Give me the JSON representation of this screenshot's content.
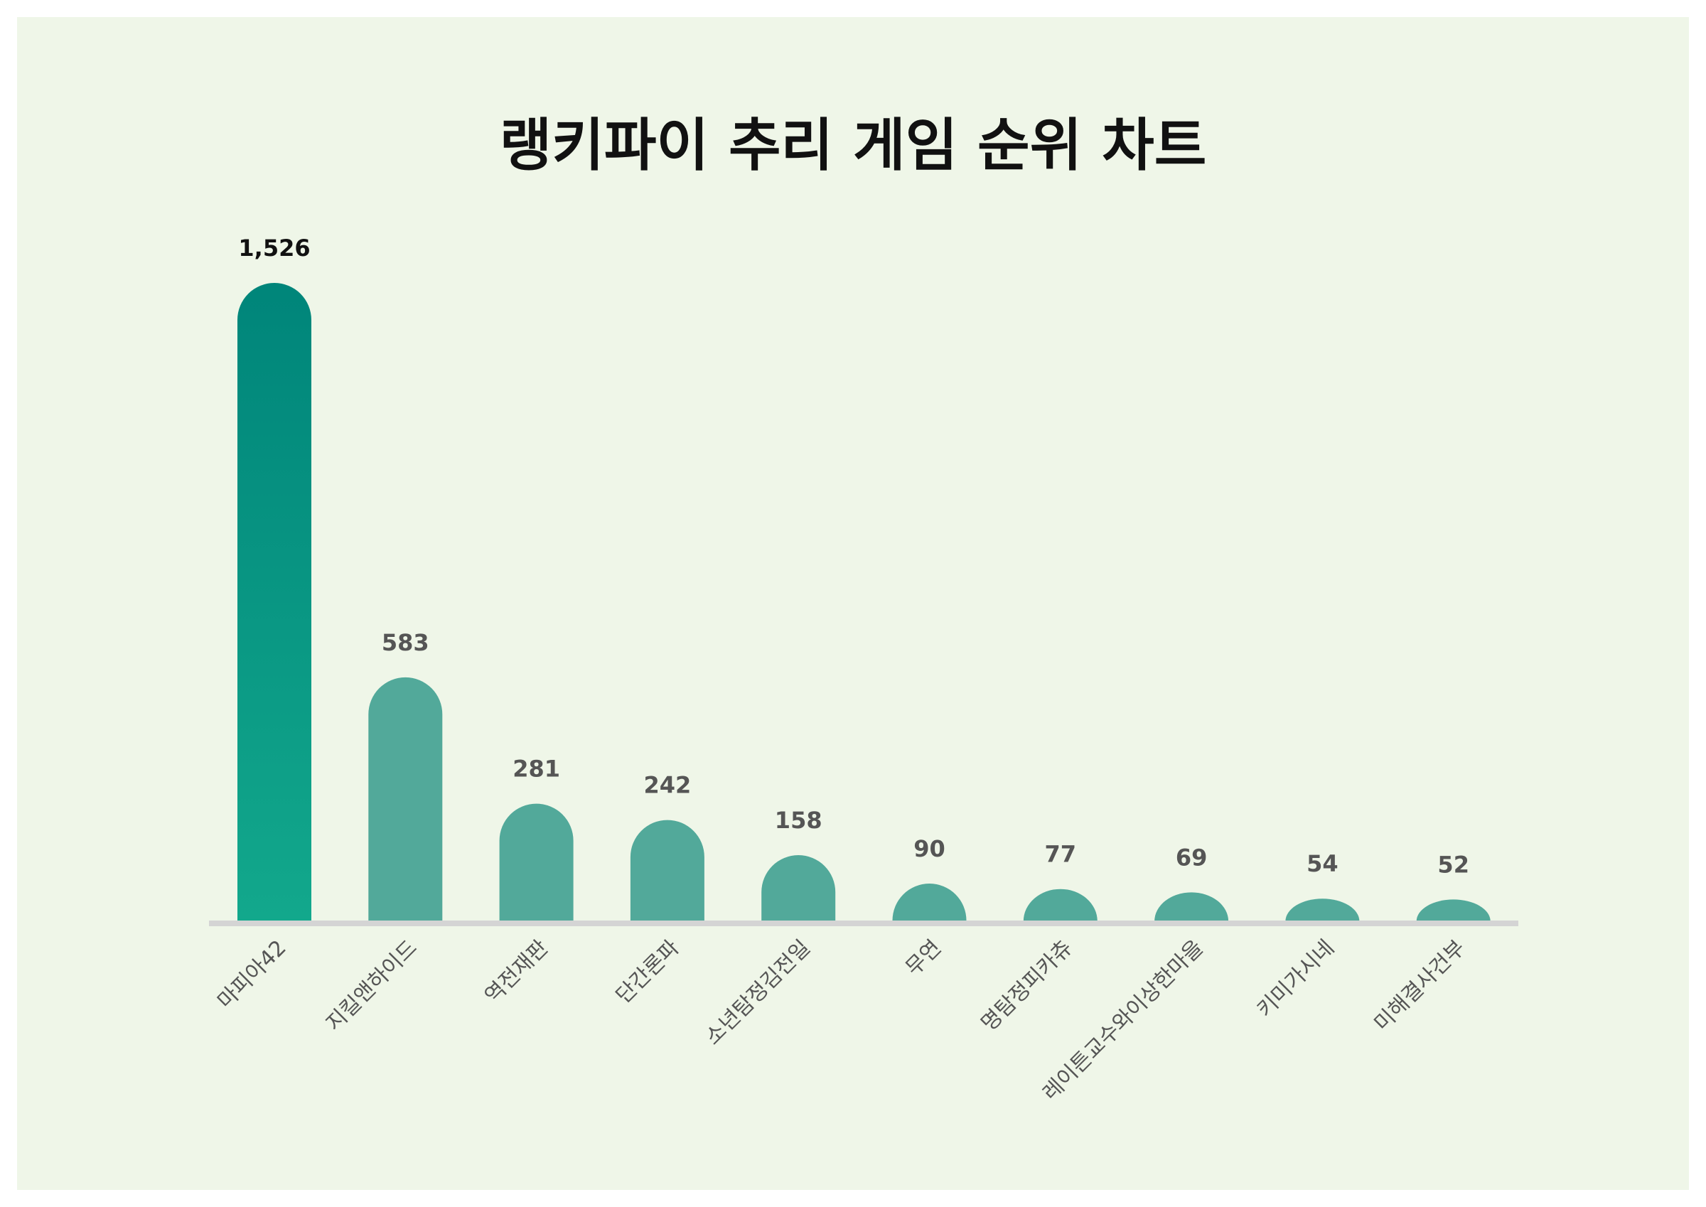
{
  "chart_data": {
    "type": "bar",
    "title": "랭키파이 추리 게임 순위 차트",
    "xlabel": "",
    "ylabel": "",
    "categories": [
      "마피아42",
      "지킬앤하이드",
      "역전재판",
      "단간론파",
      "소년탐정김전일",
      "무연",
      "명탐정피카츄",
      "레이튼교수와이상한마을",
      "키미가시네",
      "미해결사건부"
    ],
    "values": [
      1526,
      583,
      281,
      242,
      158,
      90,
      77,
      69,
      54,
      52
    ],
    "value_labels": [
      "1,526",
      "583",
      "281",
      "242",
      "158",
      "90",
      "77",
      "69",
      "54",
      "52"
    ],
    "ylim": [
      0,
      1526
    ],
    "grid": false,
    "legend": "none",
    "colors": {
      "background": "#eff6e8",
      "top_bar_start": "#00857a",
      "top_bar_end": "#12a88c",
      "bar": "#52a99a",
      "baseline": "#d4d4d4"
    }
  }
}
